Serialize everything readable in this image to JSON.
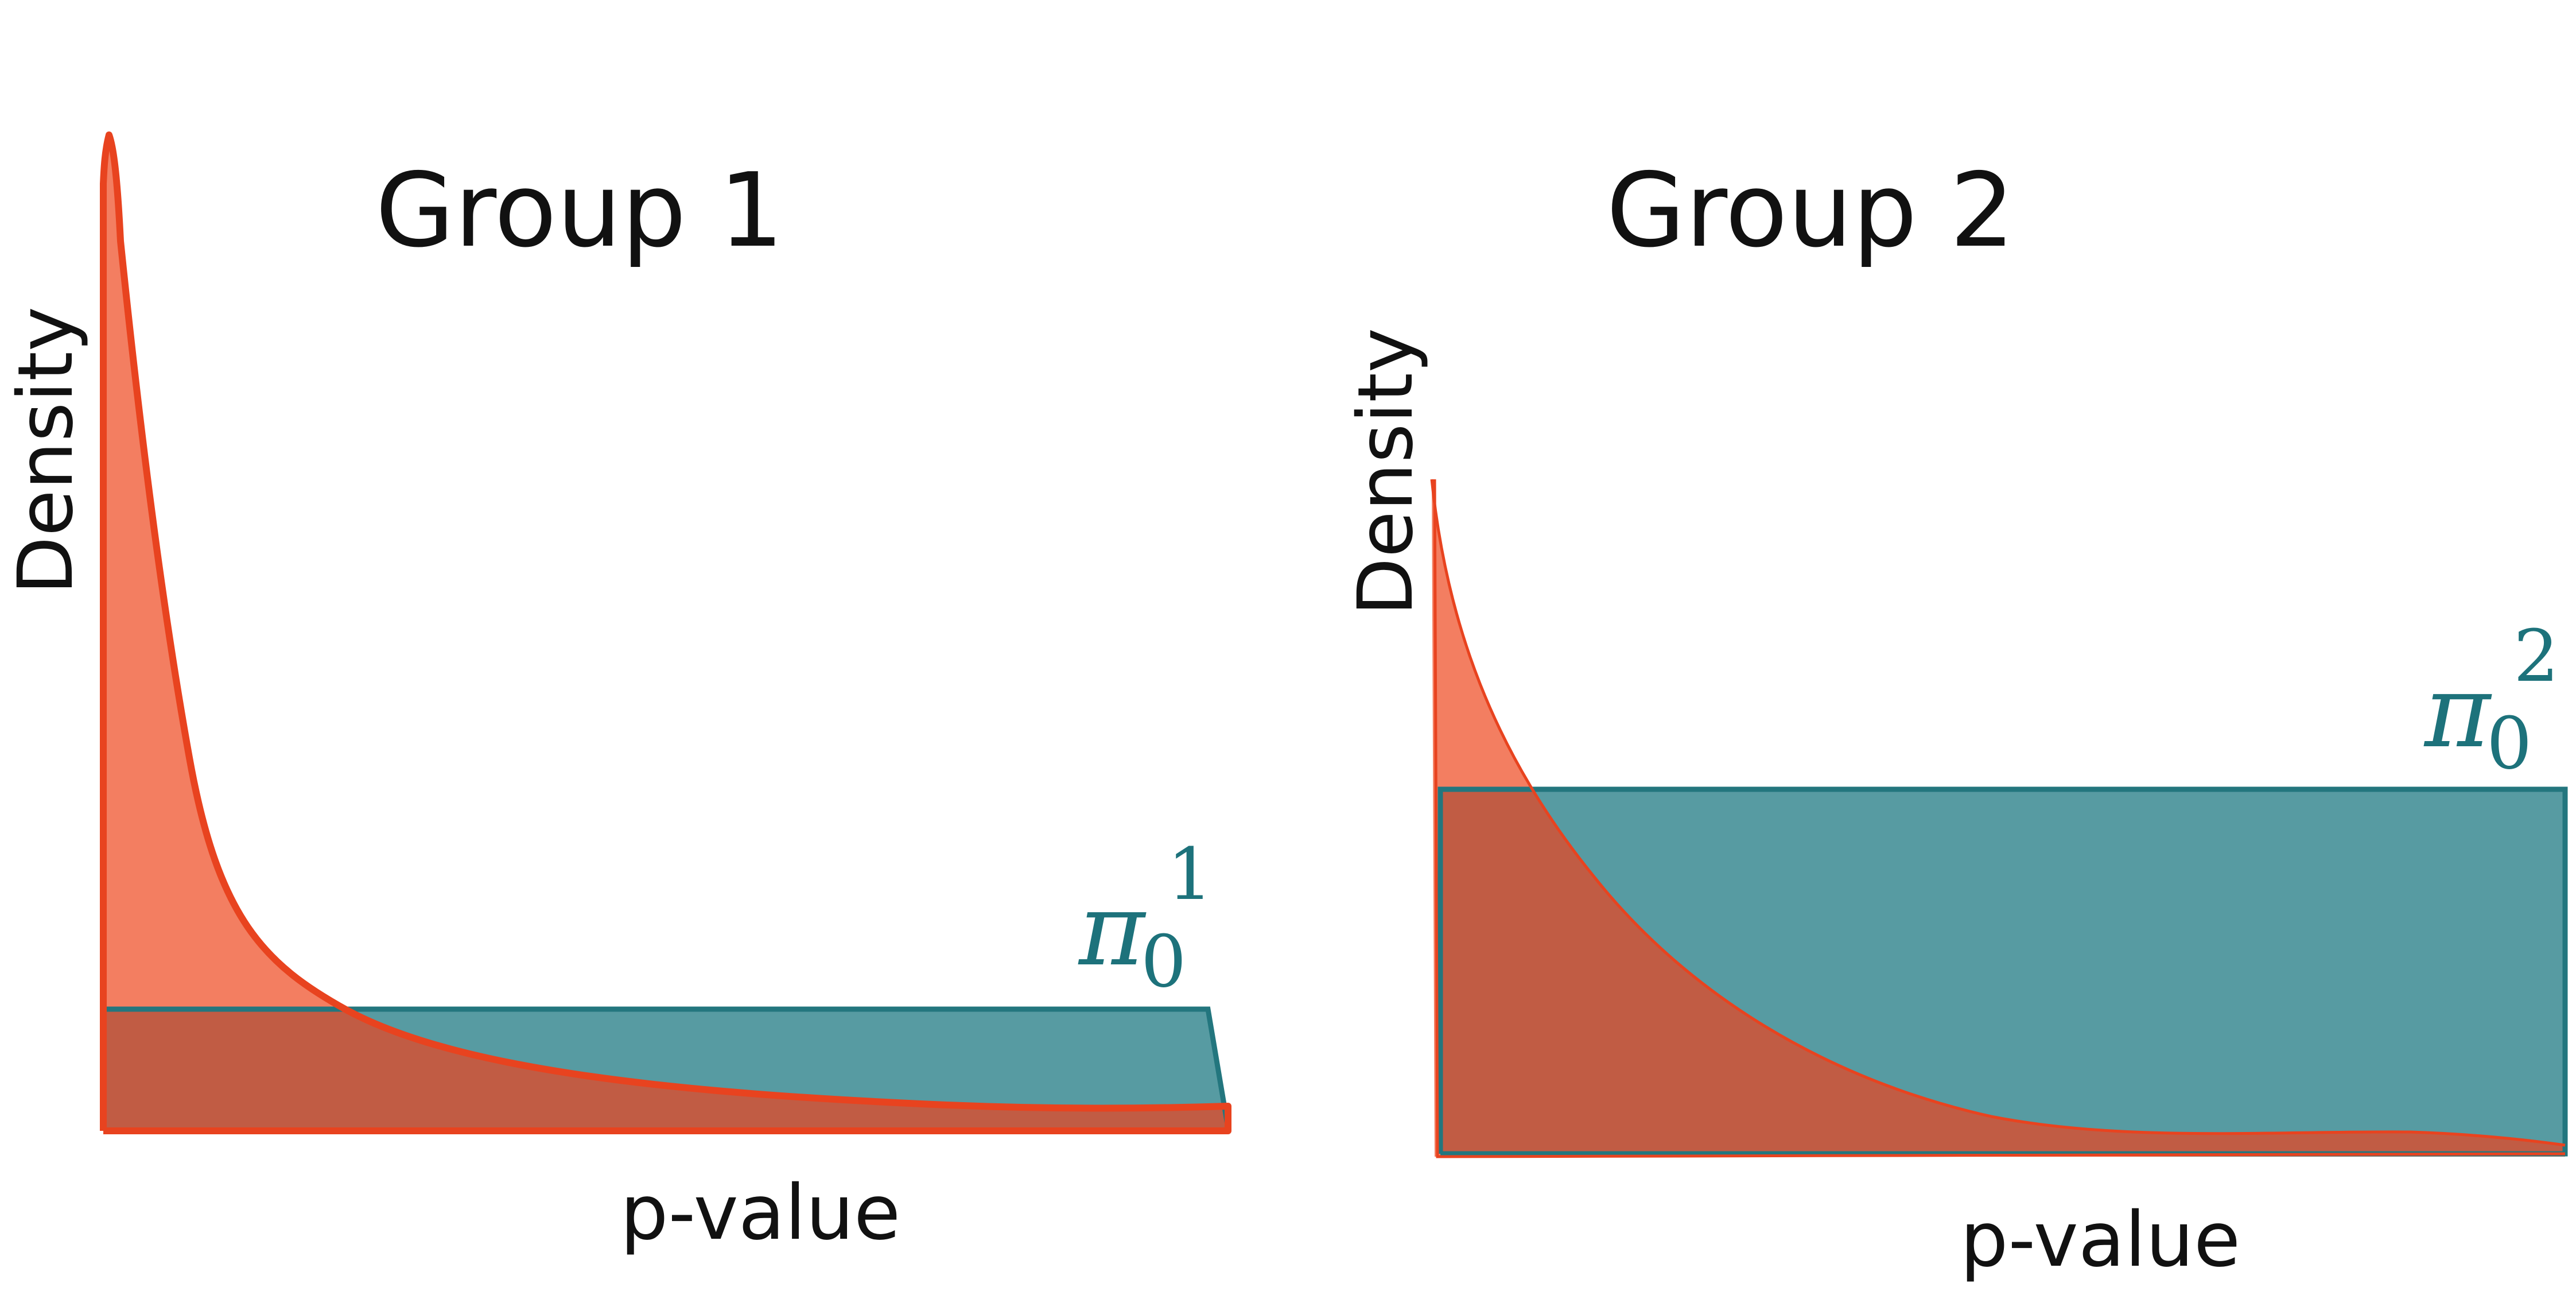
{
  "colors": {
    "teal": "#579ba2",
    "teal_edge": "#23767e",
    "orange": "#f37e61",
    "orange_edge": "#e8431f",
    "overlap": "#c15c44",
    "label_teal": "#1d727b"
  },
  "panels": [
    {
      "title": "Group 1",
      "xlabel": "p-value",
      "ylabel": "Density",
      "pi_symbol": "π",
      "pi_subscript": "0",
      "pi_superscript": "1"
    },
    {
      "title": "Group 2",
      "xlabel": "p-value",
      "ylabel": "Density",
      "pi_symbol": "π",
      "pi_subscript": "0",
      "pi_superscript": "2"
    }
  ]
}
